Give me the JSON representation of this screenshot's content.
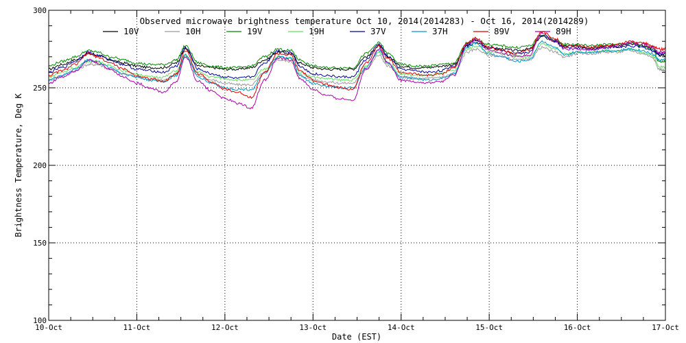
{
  "chart_data": {
    "type": "line",
    "title": "Observed microwave brightness temperature Oct 10, 2014(2014283) - Oct 16, 2014(2014289)",
    "xlabel": "Date (EST)",
    "ylabel": "Brightness Temperature, Deg K",
    "xlim": [
      0,
      7
    ],
    "ylim": [
      100,
      300
    ],
    "x_ticks": [
      0,
      1,
      2,
      3,
      4,
      5,
      6,
      7
    ],
    "x_tick_labels": [
      "10-Oct",
      "11-Oct",
      "12-Oct",
      "13-Oct",
      "14-Oct",
      "15-Oct",
      "16-Oct",
      "17-Oct"
    ],
    "y_ticks": [
      100,
      150,
      200,
      250,
      300
    ],
    "y_tick_labels": [
      "100",
      "150",
      "200",
      "250",
      "300"
    ],
    "grid": true,
    "legend_position": "top",
    "series": [
      {
        "name": "10V",
        "color": "#000000",
        "x": [
          0,
          0.15,
          0.3,
          0.45,
          0.55,
          0.7,
          0.85,
          1.0,
          1.15,
          1.3,
          1.45,
          1.55,
          1.7,
          1.85,
          2.0,
          2.15,
          2.3,
          2.45,
          2.6,
          2.75,
          2.85,
          3.0,
          3.15,
          3.3,
          3.45,
          3.6,
          3.75,
          3.85,
          4.0,
          4.15,
          4.3,
          4.45,
          4.6,
          4.75,
          4.85,
          5.0,
          5.15,
          5.3,
          5.45,
          5.6,
          5.75,
          5.85,
          6.0,
          6.15,
          6.3,
          6.45,
          6.6,
          6.75,
          6.85,
          6.93,
          7.0
        ],
        "y": [
          262,
          265,
          268,
          272,
          271,
          268,
          266,
          264,
          263,
          263,
          266,
          275,
          264,
          263,
          262,
          262,
          263,
          268,
          273,
          272,
          266,
          263,
          262,
          262,
          262,
          270,
          277,
          270,
          264,
          263,
          263,
          264,
          265,
          277,
          279,
          276,
          275,
          274,
          275,
          283,
          280,
          277,
          277,
          276,
          277,
          277,
          278,
          277,
          276,
          271,
          271
        ]
      },
      {
        "name": "10H",
        "color": "#999999",
        "x": [
          0,
          0.15,
          0.3,
          0.45,
          0.55,
          0.7,
          0.85,
          1.0,
          1.15,
          1.3,
          1.45,
          1.55,
          1.7,
          1.85,
          2.0,
          2.15,
          2.3,
          2.45,
          2.6,
          2.75,
          2.85,
          3.0,
          3.15,
          3.3,
          3.45,
          3.6,
          3.75,
          3.85,
          4.0,
          4.15,
          4.3,
          4.45,
          4.6,
          4.75,
          4.85,
          5.0,
          5.15,
          5.3,
          5.45,
          5.6,
          5.75,
          5.85,
          6.0,
          6.15,
          6.3,
          6.45,
          6.6,
          6.75,
          6.85,
          6.93,
          7.0
        ],
        "y": [
          255,
          258,
          261,
          265,
          265,
          262,
          259,
          257,
          255,
          255,
          259,
          270,
          258,
          255,
          253,
          252,
          252,
          260,
          268,
          267,
          258,
          255,
          254,
          253,
          253,
          262,
          271,
          264,
          257,
          256,
          256,
          257,
          259,
          273,
          275,
          271,
          270,
          268,
          268,
          276,
          273,
          270,
          272,
          272,
          273,
          273,
          274,
          272,
          270,
          262,
          261
        ]
      },
      {
        "name": "19V",
        "color": "#008800",
        "x": [
          0,
          0.15,
          0.3,
          0.45,
          0.55,
          0.7,
          0.85,
          1.0,
          1.15,
          1.3,
          1.45,
          1.55,
          1.7,
          1.85,
          2.0,
          2.15,
          2.3,
          2.45,
          2.6,
          2.75,
          2.85,
          3.0,
          3.15,
          3.3,
          3.45,
          3.6,
          3.75,
          3.85,
          4.0,
          4.15,
          4.3,
          4.45,
          4.6,
          4.75,
          4.85,
          5.0,
          5.15,
          5.3,
          5.45,
          5.6,
          5.75,
          5.85,
          6.0,
          6.15,
          6.3,
          6.45,
          6.6,
          6.75,
          6.85,
          6.93,
          7.0
        ],
        "y": [
          264,
          267,
          270,
          274,
          273,
          270,
          268,
          266,
          265,
          265,
          268,
          277,
          266,
          264,
          263,
          263,
          264,
          270,
          275,
          274,
          268,
          264,
          263,
          263,
          263,
          272,
          279,
          272,
          265,
          264,
          264,
          265,
          266,
          279,
          281,
          278,
          277,
          276,
          277,
          284,
          281,
          278,
          278,
          277,
          278,
          278,
          279,
          277,
          275,
          267,
          267
        ]
      },
      {
        "name": "19H",
        "color": "#66dd66",
        "x": [
          0,
          0.15,
          0.3,
          0.45,
          0.55,
          0.7,
          0.85,
          1.0,
          1.15,
          1.3,
          1.45,
          1.55,
          1.7,
          1.85,
          2.0,
          2.15,
          2.3,
          2.45,
          2.6,
          2.75,
          2.85,
          3.0,
          3.15,
          3.3,
          3.45,
          3.6,
          3.75,
          3.85,
          4.0,
          4.15,
          4.3,
          4.45,
          4.6,
          4.75,
          4.85,
          5.0,
          5.15,
          5.3,
          5.45,
          5.6,
          5.75,
          5.85,
          6.0,
          6.15,
          6.3,
          6.45,
          6.6,
          6.75,
          6.85,
          6.93,
          7.0
        ],
        "y": [
          257,
          260,
          263,
          267,
          267,
          264,
          261,
          259,
          257,
          257,
          261,
          271,
          260,
          257,
          256,
          255,
          255,
          262,
          270,
          269,
          260,
          257,
          256,
          255,
          255,
          264,
          273,
          266,
          259,
          258,
          258,
          259,
          261,
          275,
          277,
          273,
          272,
          270,
          270,
          278,
          275,
          272,
          273,
          273,
          274,
          274,
          275,
          273,
          271,
          264,
          263
        ]
      },
      {
        "name": "37V",
        "color": "#000099",
        "x": [
          0,
          0.15,
          0.3,
          0.45,
          0.55,
          0.7,
          0.85,
          1.0,
          1.15,
          1.3,
          1.45,
          1.55,
          1.7,
          1.85,
          2.0,
          2.15,
          2.3,
          2.45,
          2.6,
          2.75,
          2.85,
          3.0,
          3.15,
          3.3,
          3.45,
          3.6,
          3.75,
          3.85,
          4.0,
          4.15,
          4.3,
          4.45,
          4.6,
          4.75,
          4.85,
          5.0,
          5.15,
          5.3,
          5.45,
          5.6,
          5.75,
          5.85,
          6.0,
          6.15,
          6.3,
          6.45,
          6.6,
          6.75,
          6.85,
          6.93,
          7.0
        ],
        "y": [
          260,
          263,
          267,
          273,
          271,
          268,
          265,
          262,
          261,
          260,
          264,
          276,
          262,
          259,
          257,
          256,
          257,
          266,
          274,
          273,
          264,
          259,
          258,
          257,
          257,
          268,
          278,
          270,
          262,
          261,
          260,
          261,
          264,
          278,
          281,
          276,
          274,
          272,
          273,
          284,
          280,
          276,
          276,
          275,
          276,
          276,
          277,
          276,
          274,
          272,
          272
        ]
      },
      {
        "name": "37H",
        "color": "#0099cc",
        "x": [
          0,
          0.15,
          0.3,
          0.45,
          0.55,
          0.7,
          0.85,
          1.0,
          1.15,
          1.3,
          1.45,
          1.55,
          1.7,
          1.85,
          2.0,
          2.15,
          2.3,
          2.45,
          2.6,
          2.75,
          2.85,
          3.0,
          3.15,
          3.3,
          3.45,
          3.6,
          3.75,
          3.85,
          4.0,
          4.15,
          4.3,
          4.45,
          4.6,
          4.75,
          4.85,
          5.0,
          5.15,
          5.3,
          5.45,
          5.6,
          5.75,
          5.85,
          6.0,
          6.15,
          6.3,
          6.45,
          6.6,
          6.75,
          6.85,
          6.93,
          7.0
        ],
        "y": [
          255,
          258,
          262,
          268,
          267,
          263,
          259,
          257,
          255,
          254,
          258,
          271,
          257,
          253,
          250,
          249,
          249,
          259,
          270,
          269,
          258,
          253,
          251,
          250,
          250,
          263,
          274,
          266,
          257,
          256,
          255,
          256,
          259,
          276,
          279,
          272,
          270,
          267,
          268,
          280,
          276,
          271,
          273,
          273,
          274,
          274,
          275,
          274,
          272,
          268,
          268
        ]
      },
      {
        "name": "89V",
        "color": "#dd0000",
        "x": [
          0,
          0.15,
          0.3,
          0.45,
          0.55,
          0.7,
          0.85,
          1.0,
          1.15,
          1.3,
          1.45,
          1.55,
          1.7,
          1.85,
          2.0,
          2.15,
          2.3,
          2.45,
          2.6,
          2.75,
          2.85,
          3.0,
          3.15,
          3.3,
          3.45,
          3.6,
          3.75,
          3.85,
          4.0,
          4.15,
          4.3,
          4.45,
          4.6,
          4.75,
          4.85,
          5.0,
          5.15,
          5.3,
          5.45,
          5.6,
          5.75,
          5.85,
          6.0,
          6.15,
          6.3,
          6.45,
          6.6,
          6.75,
          6.85,
          6.93,
          7.0
        ],
        "y": [
          258,
          261,
          265,
          272,
          270,
          266,
          262,
          258,
          256,
          254,
          259,
          274,
          259,
          254,
          249,
          247,
          244,
          260,
          272,
          271,
          261,
          255,
          252,
          250,
          249,
          266,
          277,
          269,
          260,
          259,
          258,
          259,
          263,
          279,
          282,
          276,
          274,
          272,
          274,
          286,
          282,
          277,
          277,
          276,
          277,
          278,
          280,
          279,
          277,
          275,
          275
        ]
      },
      {
        "name": "89H",
        "color": "#aa00aa",
        "x": [
          0,
          0.15,
          0.3,
          0.45,
          0.55,
          0.7,
          0.85,
          1.0,
          1.15,
          1.3,
          1.45,
          1.55,
          1.7,
          1.85,
          2.0,
          2.15,
          2.3,
          2.45,
          2.6,
          2.75,
          2.85,
          3.0,
          3.15,
          3.3,
          3.45,
          3.6,
          3.75,
          3.85,
          4.0,
          4.15,
          4.3,
          4.45,
          4.6,
          4.75,
          4.85,
          5.0,
          5.15,
          5.3,
          5.45,
          5.6,
          5.75,
          5.85,
          6.0,
          6.15,
          6.3,
          6.45,
          6.6,
          6.75,
          6.85,
          6.93,
          7.0
        ],
        "y": [
          253,
          257,
          261,
          268,
          266,
          262,
          257,
          253,
          250,
          247,
          254,
          270,
          254,
          248,
          243,
          240,
          237,
          255,
          269,
          268,
          256,
          249,
          245,
          243,
          242,
          262,
          275,
          266,
          255,
          254,
          253,
          254,
          258,
          278,
          281,
          274,
          272,
          270,
          271,
          285,
          280,
          275,
          275,
          274,
          276,
          277,
          279,
          278,
          276,
          273,
          273
        ]
      }
    ]
  }
}
